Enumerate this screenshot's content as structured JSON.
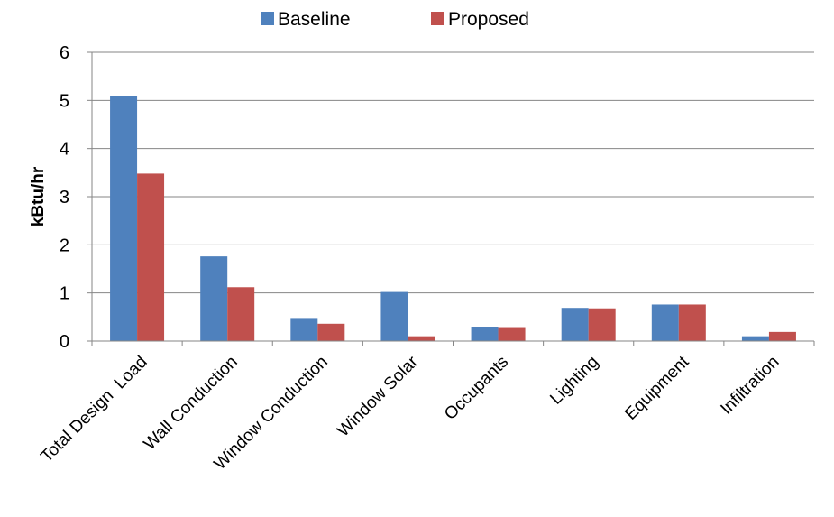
{
  "chart_data": {
    "type": "bar",
    "title": "",
    "xlabel": "",
    "ylabel": "kBtu/hr",
    "ylim": [
      0,
      6
    ],
    "yticks": [
      "0",
      "1",
      "2",
      "3",
      "4",
      "5",
      "6"
    ],
    "grid": true,
    "legend_position": "top",
    "categories": [
      "Total Design  Load",
      "Wall Conduction",
      "Window Conduction",
      "Window Solar",
      "Occupants",
      "Lighting",
      "Equipment",
      "Infiltration"
    ],
    "series": [
      {
        "name": "Baseline",
        "color": "#4f81bd",
        "values": [
          5.1,
          1.76,
          0.48,
          1.02,
          0.3,
          0.69,
          0.76,
          0.1
        ]
      },
      {
        "name": "Proposed",
        "color": "#c0504d",
        "values": [
          3.48,
          1.12,
          0.36,
          0.1,
          0.29,
          0.68,
          0.76,
          0.19
        ]
      }
    ]
  }
}
